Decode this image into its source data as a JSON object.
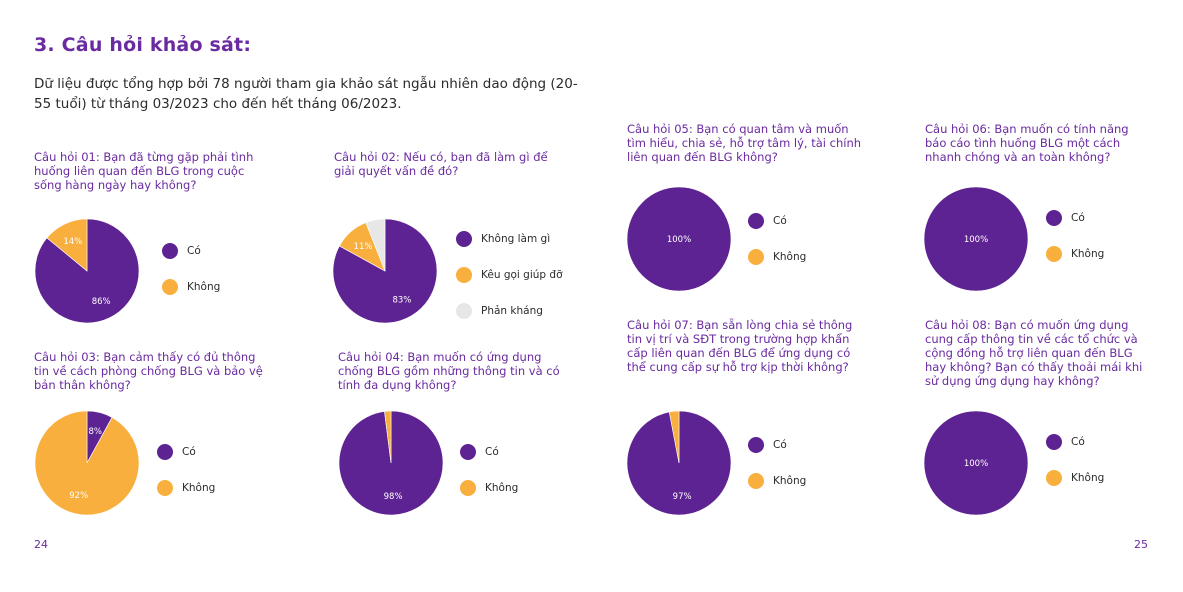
{
  "title": "3. Câu hỏi khảo sát:",
  "intro": "Dữ liệu được tổng hợp bởi 78 người tham gia khảo sát ngẫu nhiên dao động (20-55 tuổi) từ tháng 03/2023 cho đến hết tháng 06/2023.",
  "pages": {
    "left": "24",
    "right": "25"
  },
  "colors": {
    "purple": "#5e2393",
    "orange": "#f8af3d",
    "light": "#e7e7e7"
  },
  "chart_data": [
    {
      "type": "pie",
      "title": "Câu hỏi 01: Bạn đã từng gặp phải tình huống liên quan đến BLG trong cuộc sống hàng ngày hay không?",
      "slices": [
        {
          "name": "Có",
          "value": 86,
          "label": "86%",
          "color": "#5e2393"
        },
        {
          "name": "Không",
          "value": 14,
          "label": "14%",
          "color": "#f8af3d"
        }
      ]
    },
    {
      "type": "pie",
      "title": "Câu hỏi 02: Nếu có, bạn đã làm gì để giải quyết vấn đề đó?",
      "slices": [
        {
          "name": "Không làm gì",
          "value": 83,
          "label": "83%",
          "color": "#5e2393"
        },
        {
          "name": "Kêu gọi giúp đỡ",
          "value": 11,
          "label": "11%",
          "color": "#f8af3d"
        },
        {
          "name": "Phản kháng",
          "value": 6,
          "label": "",
          "color": "#e7e7e7"
        }
      ]
    },
    {
      "type": "pie",
      "title": "Câu hỏi 03: Bạn cảm thấy có đủ thông tin về cách phòng chống BLG và bảo vệ bản thân không?",
      "slices": [
        {
          "name": "Có",
          "value": 8,
          "label": "8%",
          "color": "#5e2393"
        },
        {
          "name": "Không",
          "value": 92,
          "label": "92%",
          "color": "#f8af3d"
        }
      ]
    },
    {
      "type": "pie",
      "title": "Câu hỏi 04: Bạn muốn có ứng dụng chống BLG gồm những thông tin và có tính đa dụng không?",
      "slices": [
        {
          "name": "Có",
          "value": 98,
          "label": "98%",
          "color": "#5e2393"
        },
        {
          "name": "Không",
          "value": 2,
          "label": "",
          "color": "#f8af3d"
        }
      ]
    },
    {
      "type": "pie",
      "title": "Câu hỏi 05: Bạn có quan tâm và muốn tìm hiểu, chia sẻ, hỗ trợ tâm lý, tài chính liên quan đến BLG không?",
      "slices": [
        {
          "name": "Có",
          "value": 100,
          "label": "100%",
          "color": "#5e2393"
        },
        {
          "name": "Không",
          "value": 0,
          "label": "",
          "color": "#f8af3d"
        }
      ]
    },
    {
      "type": "pie",
      "title": "Câu hỏi 06: Bạn muốn có tính năng báo cáo tình huống BLG một cách nhanh chóng và an toàn không?",
      "slices": [
        {
          "name": "Có",
          "value": 100,
          "label": "100%",
          "color": "#5e2393"
        },
        {
          "name": "Không",
          "value": 0,
          "label": "",
          "color": "#f8af3d"
        }
      ]
    },
    {
      "type": "pie",
      "title": "Câu hỏi 07: Bạn sẵn lòng chia sẻ thông tin vị trí và SĐT trong trường hợp khẩn cấp liên quan đến BLG để ứng dụng có thể cung cấp sự hỗ trợ kịp thời không?",
      "slices": [
        {
          "name": "Có",
          "value": 97,
          "label": "97%",
          "color": "#5e2393"
        },
        {
          "name": "Không",
          "value": 3,
          "label": "",
          "color": "#f8af3d"
        }
      ]
    },
    {
      "type": "pie",
      "title": "Câu hỏi 08: Bạn có muốn ứng dụng cung cấp thông tin về các tổ chức và cộng đồng hỗ trợ liên quan đến BLG hay không? Bạn có thấy thoải mái khi sử dụng ứng dụng hay không?",
      "slices": [
        {
          "name": "Có",
          "value": 100,
          "label": "100%",
          "color": "#5e2393"
        },
        {
          "name": "Không",
          "value": 0,
          "label": "",
          "color": "#f8af3d"
        }
      ]
    }
  ]
}
